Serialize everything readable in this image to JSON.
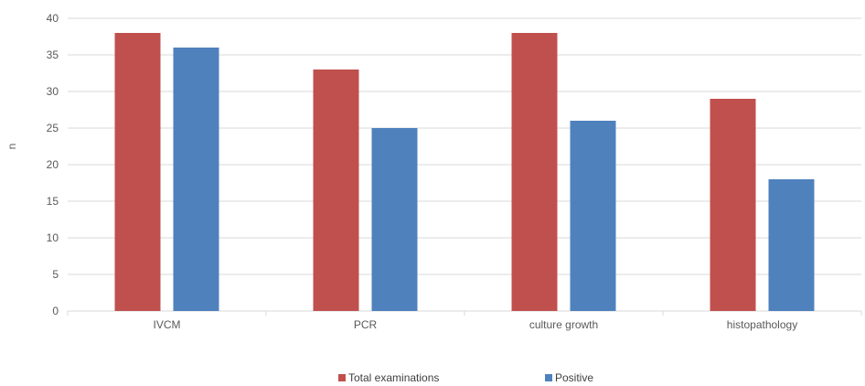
{
  "chart_data": {
    "type": "bar",
    "title": "",
    "xlabel": "",
    "ylabel": "n",
    "categories": [
      "IVCM",
      "PCR",
      "culture growth",
      "histopathology"
    ],
    "series": [
      {
        "name": "Total examinations",
        "color": "#C0504D",
        "values": [
          38,
          33,
          38,
          29
        ]
      },
      {
        "name": "Positive",
        "color": "#4F81BD",
        "values": [
          36,
          25,
          26,
          18
        ]
      }
    ],
    "ylim": [
      0,
      40
    ],
    "yticks": [
      0,
      5,
      10,
      15,
      20,
      25,
      30,
      35,
      40
    ],
    "grid": true,
    "legend_position": "bottom"
  }
}
